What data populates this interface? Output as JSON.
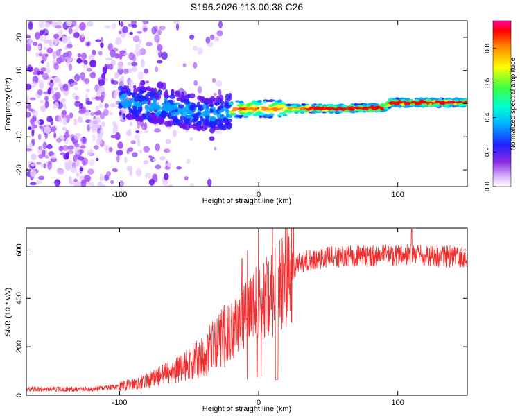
{
  "title": "S196.2026.113.00.38.C26",
  "colors": {
    "snr_line": "#ef2f2f",
    "axis": "#000000",
    "spectrogram_palette": [
      "#ffffff",
      "#e6ccff",
      "#a855f7",
      "#6a14f0",
      "#2020ff",
      "#00a0ff",
      "#00ffd0",
      "#40ff40",
      "#ffff00",
      "#ff8000",
      "#ff0000",
      "#ff00a0"
    ]
  },
  "chart_data": [
    {
      "type": "heatmap",
      "title": "",
      "xlabel": "Height of straight line (km)",
      "ylabel": "Frequency (Hz)",
      "xlim": [
        -167,
        150
      ],
      "ylim": [
        -25,
        25
      ],
      "x_ticks": [
        -100,
        0,
        100
      ],
      "y_ticks": [
        -20,
        -10,
        0,
        10,
        20
      ],
      "colorbar": {
        "label": "Normalized spectral amplitude",
        "range": [
          0.0,
          0.96
        ],
        "ticks": [
          0.0,
          0.2,
          0.4,
          0.6,
          0.8
        ]
      },
      "ridge": [
        {
          "x": -95,
          "f": 0.5
        },
        {
          "x": -60,
          "f": -1.5
        },
        {
          "x": -30,
          "f": -3.5
        },
        {
          "x": -15,
          "f": -1.5
        },
        {
          "x": 0,
          "f": -1.5
        },
        {
          "x": 20,
          "f": -1.5
        },
        {
          "x": 40,
          "f": -1.5
        },
        {
          "x": 60,
          "f": -1.5
        },
        {
          "x": 85,
          "f": -1.3
        },
        {
          "x": 90,
          "f": -1.2
        },
        {
          "x": 95,
          "f": 0.3
        },
        {
          "x": 150,
          "f": 0.3
        }
      ]
    },
    {
      "type": "line",
      "title": "",
      "xlabel": "Height of straight line (km)",
      "ylabel": "SNR (10 * v/v)",
      "xlim": [
        -167,
        150
      ],
      "ylim": [
        0,
        690
      ],
      "x_ticks": [
        -100,
        0,
        100
      ],
      "y_ticks": [
        0,
        200,
        400,
        600
      ],
      "series": [
        {
          "name": "SNR",
          "trend": [
            {
              "x": -167,
              "y": 25
            },
            {
              "x": -120,
              "y": 25
            },
            {
              "x": -100,
              "y": 35
            },
            {
              "x": -80,
              "y": 60
            },
            {
              "x": -60,
              "y": 100
            },
            {
              "x": -40,
              "y": 160
            },
            {
              "x": -25,
              "y": 240
            },
            {
              "x": -10,
              "y": 320
            },
            {
              "x": 0,
              "y": 380
            },
            {
              "x": 10,
              "y": 430
            },
            {
              "x": 20,
              "y": 500
            },
            {
              "x": 30,
              "y": 550
            },
            {
              "x": 50,
              "y": 570
            },
            {
              "x": 100,
              "y": 580
            },
            {
              "x": 150,
              "y": 570
            }
          ],
          "annotated_peaks": [
            {
              "x": -12,
              "y": 565
            },
            {
              "x": 6,
              "y": 540
            },
            {
              "x": 110,
              "y": 685
            }
          ]
        }
      ]
    }
  ]
}
